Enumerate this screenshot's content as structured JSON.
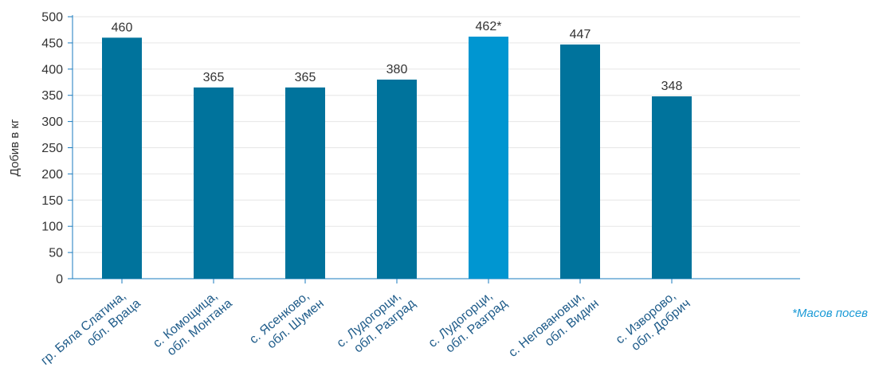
{
  "chart_data": {
    "type": "bar",
    "ylabel": "Добив в кг",
    "ylim": [
      0,
      500
    ],
    "yticks": [
      0,
      50,
      100,
      150,
      200,
      250,
      300,
      350,
      400,
      450,
      500
    ],
    "grid": true,
    "categories": [
      [
        "гр. Бяла Слатина,",
        "обл. Враца"
      ],
      [
        "с. Комощица,",
        "обл. Монтана"
      ],
      [
        "с. Ясенково,",
        "обл. Шумен"
      ],
      [
        "с. Лудогорци,",
        "обл. Разград"
      ],
      [
        "с. Лудогорци,",
        "обл. Разград"
      ],
      [
        "с. Неговановци,",
        "обл. Видин"
      ],
      [
        "с. Изворово,",
        "обл. Добрич"
      ]
    ],
    "values": [
      460,
      365,
      365,
      380,
      462,
      447,
      348
    ],
    "data_labels": [
      "460",
      "365",
      "365",
      "380",
      "462*",
      "447",
      "348"
    ],
    "bar_colors": [
      "#00739c",
      "#00739c",
      "#00739c",
      "#00739c",
      "#0096d1",
      "#00739c",
      "#00739c"
    ],
    "axis_color": "#1a7bbf",
    "grid_color": "#e6e6e6"
  },
  "note": "*Масов посев"
}
